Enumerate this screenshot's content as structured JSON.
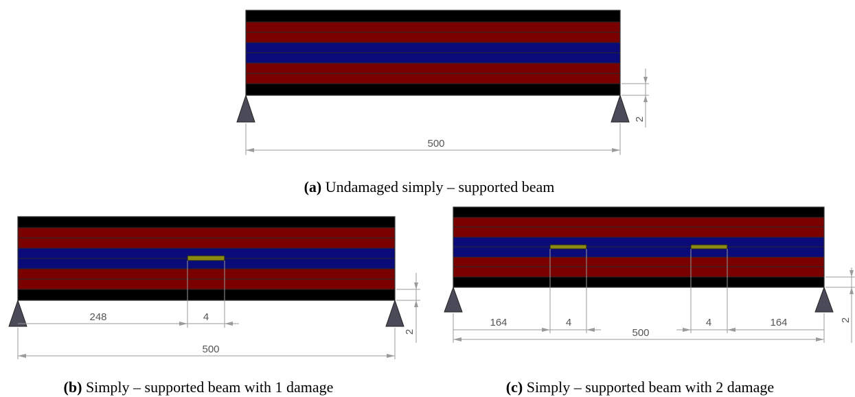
{
  "colors": {
    "black_layer": "#000000",
    "red_layer": "#7a0000",
    "blue_layer": "#0a0a78",
    "damage": "#8a8a10",
    "support": "#4a4a58"
  },
  "layers_top_to_bottom": [
    "black",
    "red",
    "red",
    "blue",
    "blue",
    "red",
    "red",
    "black"
  ],
  "figure_a": {
    "caption_label": "(a)",
    "caption_text": " Undamaged simply – supported beam",
    "span_label": "500",
    "side_label": "2"
  },
  "figure_b": {
    "caption_label": "(b)",
    "caption_text": " Simply – supported beam with 1 damage",
    "dim_left": "248",
    "dim_damage": "4",
    "span_label": "500",
    "side_label": "2"
  },
  "figure_c": {
    "caption_label": "(c)",
    "caption_text": " Simply – supported beam with 2 damage",
    "dim_left": "164",
    "dim_damage_1": "4",
    "dim_damage_2": "4",
    "dim_right": "164",
    "span_label": "500",
    "side_label": "2"
  }
}
